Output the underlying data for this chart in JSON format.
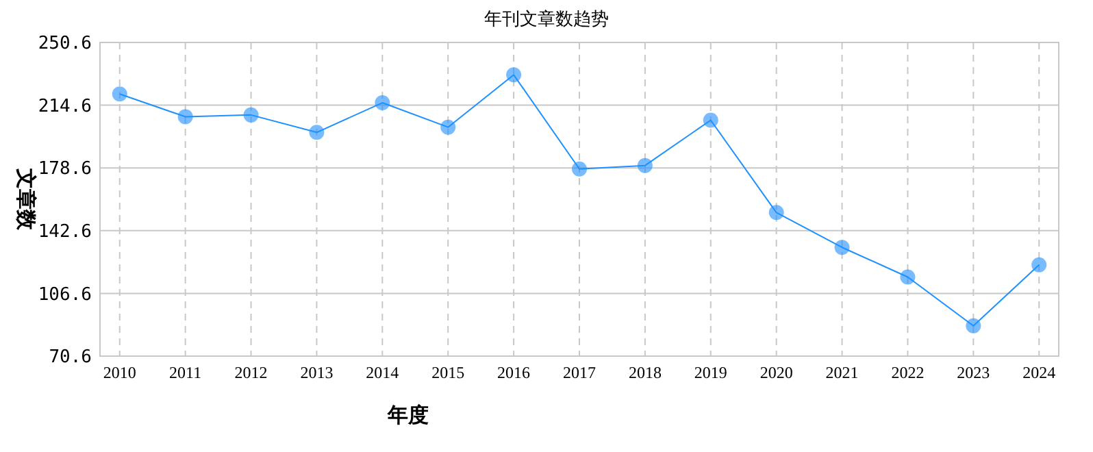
{
  "chart_data": {
    "type": "line",
    "title": "年刊文章数趋势",
    "xlabel": "年度",
    "ylabel": "文章数",
    "x": [
      2010,
      2011,
      2012,
      2013,
      2014,
      2015,
      2016,
      2017,
      2018,
      2019,
      2020,
      2021,
      2022,
      2023,
      2024
    ],
    "series": [
      {
        "color": "#1e90ff",
        "values": [
          221,
          208,
          209,
          199,
          216,
          202,
          232,
          178,
          180,
          206,
          153,
          133,
          116,
          88,
          123
        ]
      }
    ],
    "xlim": [
      2009.7,
      2024.3
    ],
    "xticks": [
      2010,
      2011,
      2012,
      2013,
      2014,
      2015,
      2016,
      2017,
      2018,
      2019,
      2020,
      2021,
      2022,
      2023,
      2024
    ],
    "ylim": [
      70.6,
      250.6
    ],
    "yticks": [
      70.6,
      106.6,
      142.6,
      178.6,
      214.6,
      250.6
    ],
    "grid": true,
    "marker": "circle",
    "line_style": "solid"
  }
}
